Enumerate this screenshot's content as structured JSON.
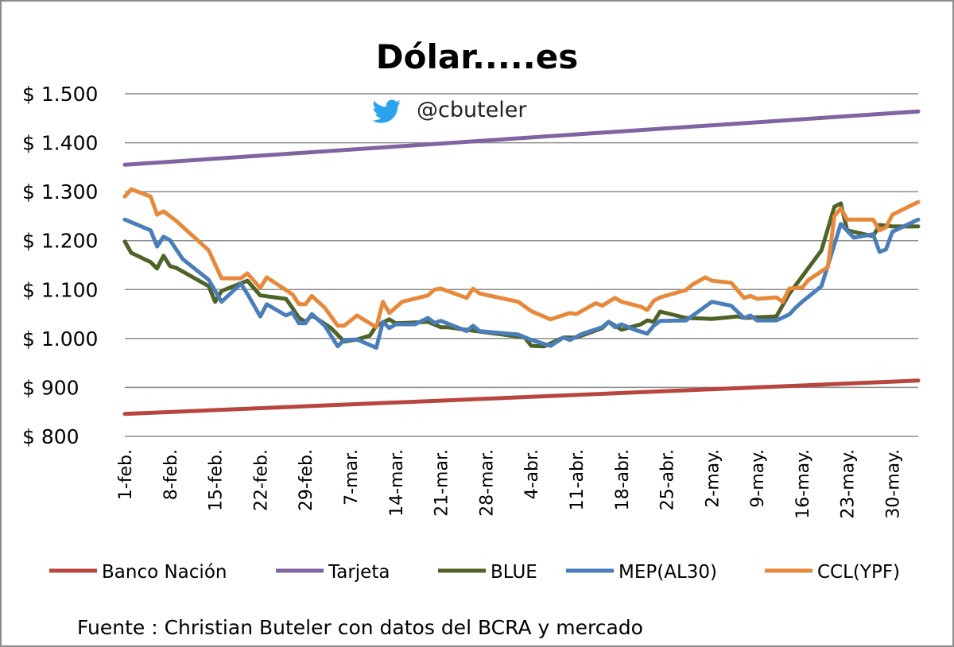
{
  "chart_data": {
    "type": "line",
    "title": "Dólar.....es",
    "handle": "@cbuteler",
    "handle_icon": "twitter-bird-icon",
    "source": "Fuente : Christian Buteler con datos del BCRA y mercado",
    "ylim": [
      800,
      1500
    ],
    "yticks": [
      800,
      900,
      1000,
      1100,
      1200,
      1300,
      1400,
      1500
    ],
    "ytick_labels": [
      "$ 800",
      "$ 900",
      "$ 1.000",
      "$ 1.100",
      "$ 1.200",
      "$ 1.300",
      "$ 1.400",
      "$ 1.500"
    ],
    "xlim": [
      "1-feb",
      "3-jun"
    ],
    "xtick_labels": [
      "1-feb.",
      "8-feb.",
      "15-feb.",
      "22-feb.",
      "29-feb.",
      "7-mar.",
      "14-mar.",
      "21-mar.",
      "28-mar.",
      "4-abr.",
      "11-abr.",
      "18-abr.",
      "25-abr.",
      "2-may.",
      "9-may.",
      "16-may.",
      "23-may.",
      "30-may."
    ],
    "xticks": [
      "1-feb",
      "8-feb",
      "15-feb",
      "22-feb",
      "29-feb",
      "7-mar",
      "14-mar",
      "21-mar",
      "28-mar",
      "4-abr",
      "11-abr",
      "18-abr",
      "25-abr",
      "2-may",
      "9-may",
      "16-may",
      "23-may",
      "30-may"
    ],
    "grid": true,
    "legend_position": "bottom",
    "series": [
      {
        "name": "Banco Nación",
        "color": "#B8453E",
        "points": [
          [
            "1-feb",
            846
          ],
          [
            "3-jun",
            914
          ]
        ]
      },
      {
        "name": "Tarjeta",
        "color": "#8064A2",
        "points": [
          [
            "1-feb",
            1355
          ],
          [
            "3-jun",
            1464
          ]
        ]
      },
      {
        "name": "BLUE",
        "color": "#4F6228",
        "points": [
          [
            "1-feb",
            1198
          ],
          [
            "2-feb",
            1175
          ],
          [
            "5-feb",
            1156
          ],
          [
            "6-feb",
            1143
          ],
          [
            "7-feb",
            1169
          ],
          [
            "8-feb",
            1148
          ],
          [
            "9-feb",
            1144
          ],
          [
            "14-feb",
            1107
          ],
          [
            "15-feb",
            1075
          ],
          [
            "16-feb",
            1097
          ],
          [
            "20-feb",
            1118
          ],
          [
            "22-feb",
            1088
          ],
          [
            "26-feb",
            1081
          ],
          [
            "27-feb",
            1062
          ],
          [
            "28-feb",
            1042
          ],
          [
            "29-feb",
            1034
          ],
          [
            "1-mar",
            1047
          ],
          [
            "4-mar",
            1021
          ],
          [
            "6-mar",
            994
          ],
          [
            "8-mar",
            998
          ],
          [
            "10-mar",
            1006
          ],
          [
            "11-mar",
            1026
          ],
          [
            "13-mar",
            1039
          ],
          [
            "14-mar",
            1031
          ],
          [
            "19-mar",
            1034
          ],
          [
            "21-mar",
            1023
          ],
          [
            "22-mar",
            1023
          ],
          [
            "26-mar",
            1016
          ],
          [
            "3-abr",
            1002
          ],
          [
            "4-abr",
            985
          ],
          [
            "6-abr",
            984
          ],
          [
            "9-abr",
            1002
          ],
          [
            "11-abr",
            1002
          ],
          [
            "15-abr",
            1021
          ],
          [
            "16-abr",
            1034
          ],
          [
            "17-abr",
            1026
          ],
          [
            "18-abr",
            1018
          ],
          [
            "21-abr",
            1029
          ],
          [
            "22-abr",
            1037
          ],
          [
            "23-abr",
            1034
          ],
          [
            "24-abr",
            1055
          ],
          [
            "28-abr",
            1042
          ],
          [
            "2-may",
            1040
          ],
          [
            "6-may",
            1045
          ],
          [
            "7-may",
            1042
          ],
          [
            "12-may",
            1045
          ],
          [
            "14-may",
            1091
          ],
          [
            "19-may",
            1180
          ],
          [
            "21-may",
            1269
          ],
          [
            "22-may",
            1276
          ],
          [
            "23-may",
            1221
          ],
          [
            "27-may",
            1209
          ],
          [
            "28-may",
            1232
          ],
          [
            "30-may",
            1229
          ],
          [
            "3-jun",
            1229
          ]
        ]
      },
      {
        "name": "MEP(AL30)",
        "color": "#4A7EBB",
        "points": [
          [
            "1-feb",
            1243
          ],
          [
            "5-feb",
            1221
          ],
          [
            "6-feb",
            1188
          ],
          [
            "7-feb",
            1208
          ],
          [
            "8-feb",
            1201
          ],
          [
            "10-feb",
            1162
          ],
          [
            "14-feb",
            1120
          ],
          [
            "16-feb",
            1075
          ],
          [
            "19-feb",
            1112
          ],
          [
            "20-feb",
            1091
          ],
          [
            "22-feb",
            1045
          ],
          [
            "23-feb",
            1070
          ],
          [
            "26-feb",
            1047
          ],
          [
            "27-feb",
            1053
          ],
          [
            "28-feb",
            1031
          ],
          [
            "29-feb",
            1031
          ],
          [
            "1-mar",
            1050
          ],
          [
            "3-mar",
            1026
          ],
          [
            "5-mar",
            984
          ],
          [
            "6-mar",
            997
          ],
          [
            "8-mar",
            998
          ],
          [
            "11-mar",
            981
          ],
          [
            "12-mar",
            1034
          ],
          [
            "13-mar",
            1021
          ],
          [
            "14-mar",
            1029
          ],
          [
            "17-mar",
            1029
          ],
          [
            "19-mar",
            1042
          ],
          [
            "20-mar",
            1032
          ],
          [
            "21-mar",
            1036
          ],
          [
            "25-mar",
            1015
          ],
          [
            "26-mar",
            1026
          ],
          [
            "27-mar",
            1015
          ],
          [
            "2-abr",
            1008
          ],
          [
            "4-abr",
            997
          ],
          [
            "7-abr",
            985
          ],
          [
            "9-abr",
            1002
          ],
          [
            "10-abr",
            997
          ],
          [
            "12-abr",
            1010
          ],
          [
            "15-abr",
            1023
          ],
          [
            "16-abr",
            1034
          ],
          [
            "17-abr",
            1023
          ],
          [
            "18-abr",
            1029
          ],
          [
            "20-abr",
            1018
          ],
          [
            "22-abr",
            1010
          ],
          [
            "23-abr",
            1026
          ],
          [
            "24-abr",
            1036
          ],
          [
            "28-abr",
            1037
          ],
          [
            "2-may",
            1075
          ],
          [
            "5-may",
            1067
          ],
          [
            "7-may",
            1042
          ],
          [
            "8-may",
            1047
          ],
          [
            "9-may",
            1037
          ],
          [
            "12-may",
            1037
          ],
          [
            "14-may",
            1049
          ],
          [
            "15-may",
            1063
          ],
          [
            "16-may",
            1075
          ],
          [
            "19-may",
            1107
          ],
          [
            "22-may",
            1234
          ],
          [
            "24-may",
            1206
          ],
          [
            "27-may",
            1213
          ],
          [
            "28-may",
            1177
          ],
          [
            "29-may",
            1182
          ],
          [
            "30-may",
            1218
          ],
          [
            "3-jun",
            1243
          ]
        ]
      },
      {
        "name": "CCL(YPF)",
        "color": "#E8883A",
        "points": [
          [
            "1-feb",
            1290
          ],
          [
            "2-feb",
            1305
          ],
          [
            "5-feb",
            1290
          ],
          [
            "6-feb",
            1253
          ],
          [
            "7-feb",
            1260
          ],
          [
            "9-feb",
            1240
          ],
          [
            "14-feb",
            1180
          ],
          [
            "16-feb",
            1123
          ],
          [
            "19-feb",
            1123
          ],
          [
            "20-feb",
            1133
          ],
          [
            "22-feb",
            1103
          ],
          [
            "23-feb",
            1125
          ],
          [
            "27-feb",
            1090
          ],
          [
            "28-feb",
            1070
          ],
          [
            "29-feb",
            1070
          ],
          [
            "1-mar",
            1087
          ],
          [
            "3-mar",
            1063
          ],
          [
            "5-mar",
            1026
          ],
          [
            "6-mar",
            1026
          ],
          [
            "8-mar",
            1047
          ],
          [
            "11-mar",
            1023
          ],
          [
            "12-mar",
            1075
          ],
          [
            "13-mar",
            1052
          ],
          [
            "15-mar",
            1075
          ],
          [
            "19-mar",
            1088
          ],
          [
            "20-mar",
            1100
          ],
          [
            "21-mar",
            1102
          ],
          [
            "25-mar",
            1083
          ],
          [
            "26-mar",
            1102
          ],
          [
            "27-mar",
            1092
          ],
          [
            "2-abr",
            1075
          ],
          [
            "4-abr",
            1056
          ],
          [
            "7-abr",
            1039
          ],
          [
            "10-abr",
            1052
          ],
          [
            "11-abr",
            1050
          ],
          [
            "14-abr",
            1072
          ],
          [
            "15-abr",
            1067
          ],
          [
            "17-abr",
            1083
          ],
          [
            "18-abr",
            1075
          ],
          [
            "21-abr",
            1065
          ],
          [
            "22-abr",
            1058
          ],
          [
            "23-abr",
            1077
          ],
          [
            "24-abr",
            1084
          ],
          [
            "28-abr",
            1099
          ],
          [
            "29-abr",
            1110
          ],
          [
            "1-may",
            1125
          ],
          [
            "2-may",
            1118
          ],
          [
            "5-may",
            1114
          ],
          [
            "7-may",
            1083
          ],
          [
            "8-may",
            1087
          ],
          [
            "9-may",
            1081
          ],
          [
            "12-may",
            1084
          ],
          [
            "13-may",
            1075
          ],
          [
            "14-may",
            1102
          ],
          [
            "16-may",
            1104
          ],
          [
            "17-may",
            1120
          ],
          [
            "20-may",
            1146
          ],
          [
            "21-may",
            1250
          ],
          [
            "22-may",
            1266
          ],
          [
            "23-may",
            1243
          ],
          [
            "27-may",
            1243
          ],
          [
            "28-may",
            1221
          ],
          [
            "29-may",
            1227
          ],
          [
            "30-may",
            1253
          ],
          [
            "3-jun",
            1279
          ]
        ]
      }
    ]
  }
}
